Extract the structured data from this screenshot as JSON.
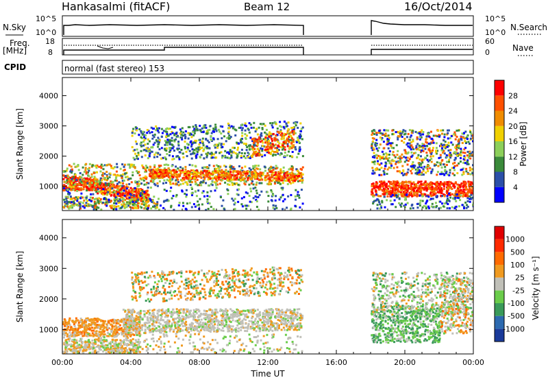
{
  "header": {
    "station": "Hankasalmi (fitACF)",
    "beam": "Beam 12",
    "date": "16/Oct/2014"
  },
  "nsky": {
    "left_label": "N.Sky",
    "right_label": "N.Search",
    "left_ticks": [
      "10^5",
      "10^0"
    ],
    "right_ticks": [
      "10^5",
      "10^0"
    ]
  },
  "freq": {
    "left_label_1": "Freq.",
    "left_label_2": "[MHz]",
    "right_label": "Nave",
    "left_ticks": [
      "18",
      "8"
    ],
    "right_ticks": [
      "60",
      "0"
    ]
  },
  "cpid": {
    "label": "CPID",
    "mode": "normal (fast stereo) 153"
  },
  "chart_data": [
    {
      "type": "heatmap",
      "name": "power",
      "ylabel": "Slant Range [km]",
      "y_ticks": [
        "4000",
        "3000",
        "2000",
        "1000"
      ],
      "colorbar_label": "Power [dB]",
      "colorbar_ticks": [
        "28",
        "24",
        "20",
        "16",
        "12",
        "8",
        "4"
      ],
      "colors": [
        "#0000ff",
        "#2b4fa8",
        "#3a8a3a",
        "#8ccf5a",
        "#f0d000",
        "#f08c00",
        "#ff5000",
        "#ff0000"
      ]
    },
    {
      "type": "heatmap",
      "name": "velocity",
      "ylabel": "Slant Range [km]",
      "y_ticks": [
        "4000",
        "3000",
        "2000",
        "1000"
      ],
      "colorbar_label": "Velocity [m s⁻¹]",
      "colorbar_ticks": [
        "1000",
        "500",
        "100",
        "25",
        "-25",
        "-100",
        "-500",
        "-1000"
      ],
      "colors": [
        "#1a3a9a",
        "#2d6ab0",
        "#3a9a5a",
        "#6acc4a",
        "#c0c0b8",
        "#f09a20",
        "#ff6a00",
        "#ff2a00",
        "#e00000"
      ]
    }
  ],
  "x_axis": {
    "label": "Time UT",
    "ticks": [
      "00:00",
      "04:00",
      "08:00",
      "12:00",
      "16:00",
      "20:00",
      "00:00"
    ]
  }
}
